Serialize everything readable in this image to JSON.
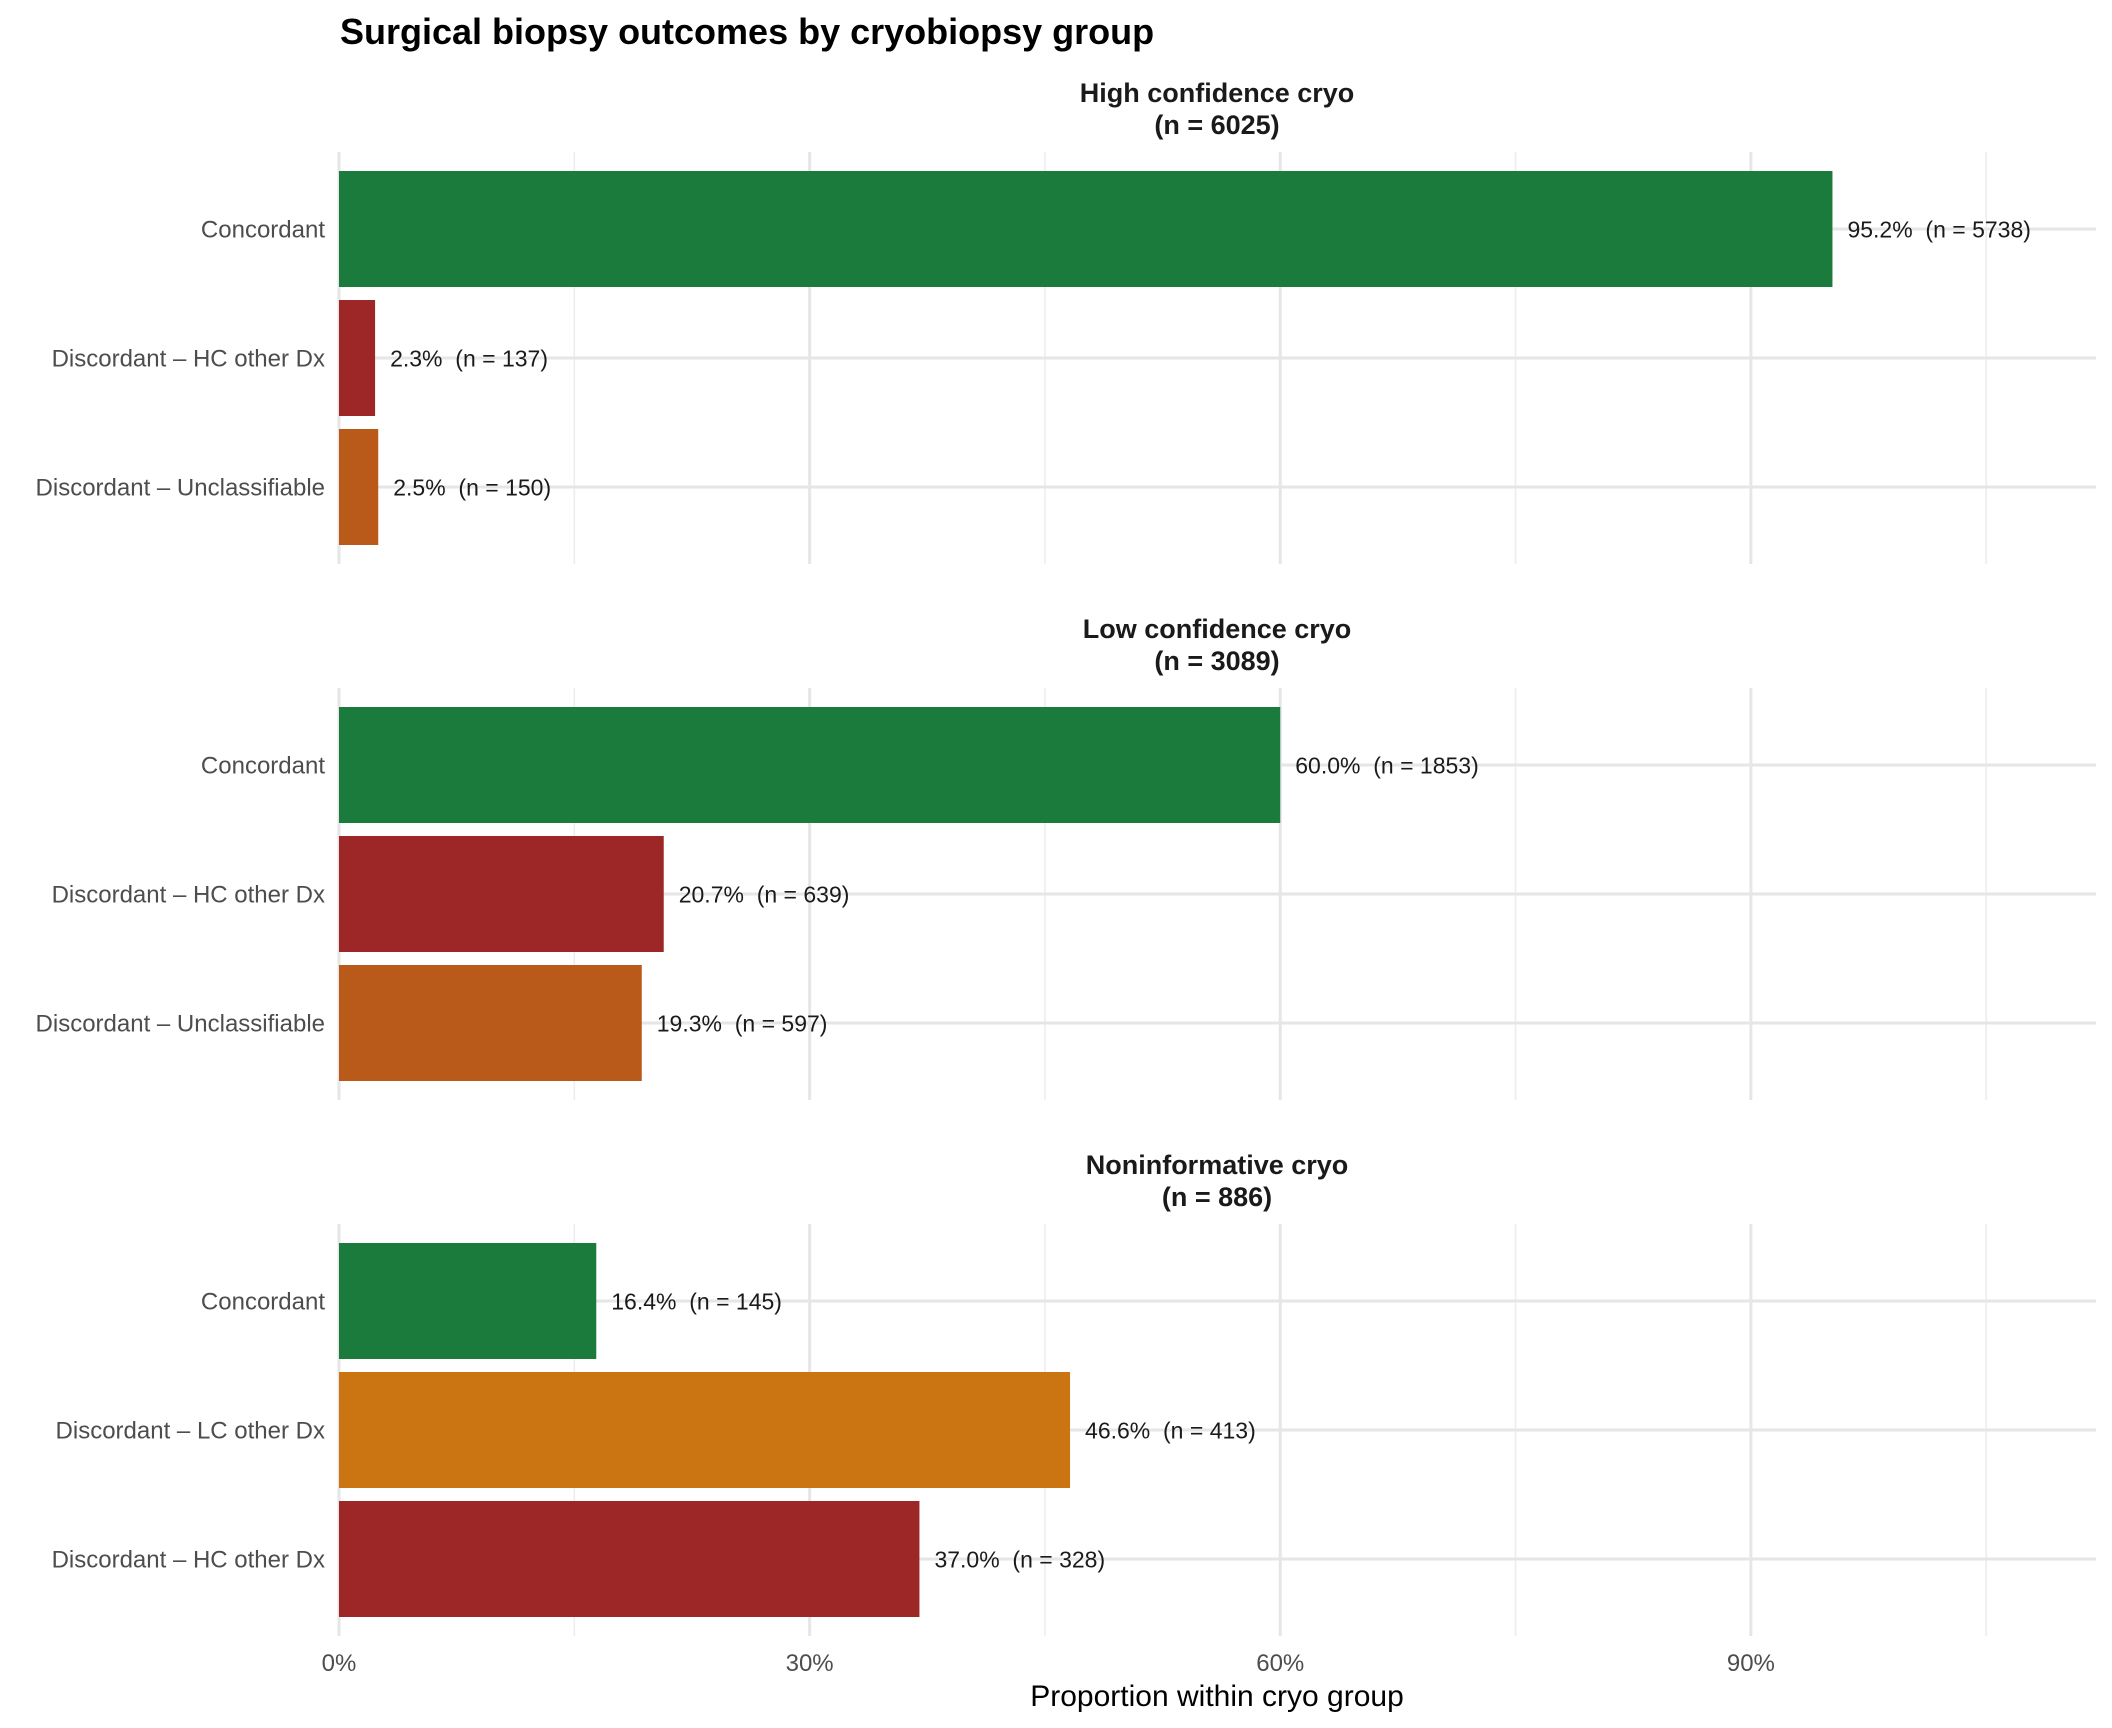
{
  "chart_data": {
    "type": "bar",
    "orientation": "horizontal",
    "title": "Surgical biopsy outcomes by cryobiopsy group",
    "xlabel": "Proportion within cryo group",
    "ylabel": "",
    "xlim": [
      0,
      112
    ],
    "x_unit": "%",
    "x_ticks": [
      0,
      30,
      60,
      90
    ],
    "x_tick_labels": [
      "0%",
      "30%",
      "60%",
      "90%"
    ],
    "x_minor_gridlines": [
      15,
      45,
      75,
      105
    ],
    "grid": true,
    "legend": "none",
    "colors": {
      "Concordant": "#1b7b3c",
      "Discordant – HC other Dx": "#9c2726",
      "Discordant – Unclassifiable": "#ba5a1a",
      "Discordant – LC other Dx": "#ca7511"
    },
    "panels": [
      {
        "title": "High confidence cryo",
        "subtitle": "(n = 6025)",
        "categories": [
          "Concordant",
          "Discordant – HC other Dx",
          "Discordant – Unclassifiable"
        ],
        "values": [
          95.2,
          2.3,
          2.5
        ],
        "counts": [
          5738,
          137,
          150
        ],
        "labels": [
          "95.2%  (n = 5738)",
          "2.3%  (n = 137)",
          "2.5%  (n = 150)"
        ]
      },
      {
        "title": "Low confidence cryo",
        "subtitle": "(n = 3089)",
        "categories": [
          "Concordant",
          "Discordant – HC other Dx",
          "Discordant – Unclassifiable"
        ],
        "values": [
          60.0,
          20.7,
          19.3
        ],
        "counts": [
          1853,
          639,
          597
        ],
        "labels": [
          "60.0%  (n = 1853)",
          "20.7%  (n = 639)",
          "19.3%  (n = 597)"
        ]
      },
      {
        "title": "Noninformative cryo",
        "subtitle": "(n = 886)",
        "categories": [
          "Concordant",
          "Discordant – LC other Dx",
          "Discordant – HC other Dx"
        ],
        "values": [
          16.4,
          46.6,
          37.0
        ],
        "counts": [
          145,
          413,
          328
        ],
        "labels": [
          "16.4%  (n = 145)",
          "46.6%  (n = 413)",
          "37.0%  (n = 328)"
        ]
      }
    ]
  }
}
